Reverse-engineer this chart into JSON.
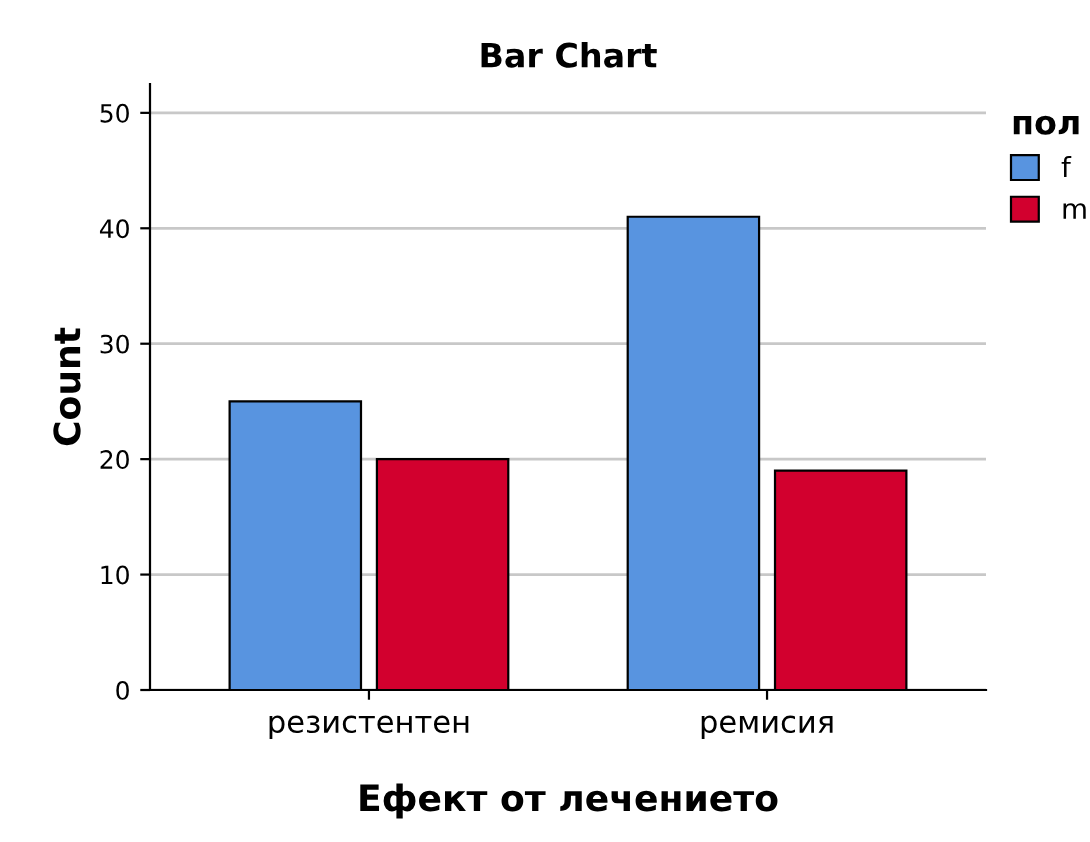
{
  "chart_data": {
    "type": "bar",
    "title": "Bar Chart",
    "xlabel": "Ефект от лечението",
    "ylabel": "Count",
    "legend_title": "пол",
    "categories": [
      "резистентен",
      "ремисия"
    ],
    "series": [
      {
        "name": "f",
        "color": "#5894e0",
        "values": [
          25,
          41
        ]
      },
      {
        "name": "m",
        "color": "#d2002e",
        "values": [
          20,
          19
        ]
      }
    ],
    "ylim": [
      0,
      52.5
    ],
    "yticks": [
      0,
      10,
      20,
      30,
      40,
      50
    ],
    "grid": "y",
    "legend": "top right"
  }
}
